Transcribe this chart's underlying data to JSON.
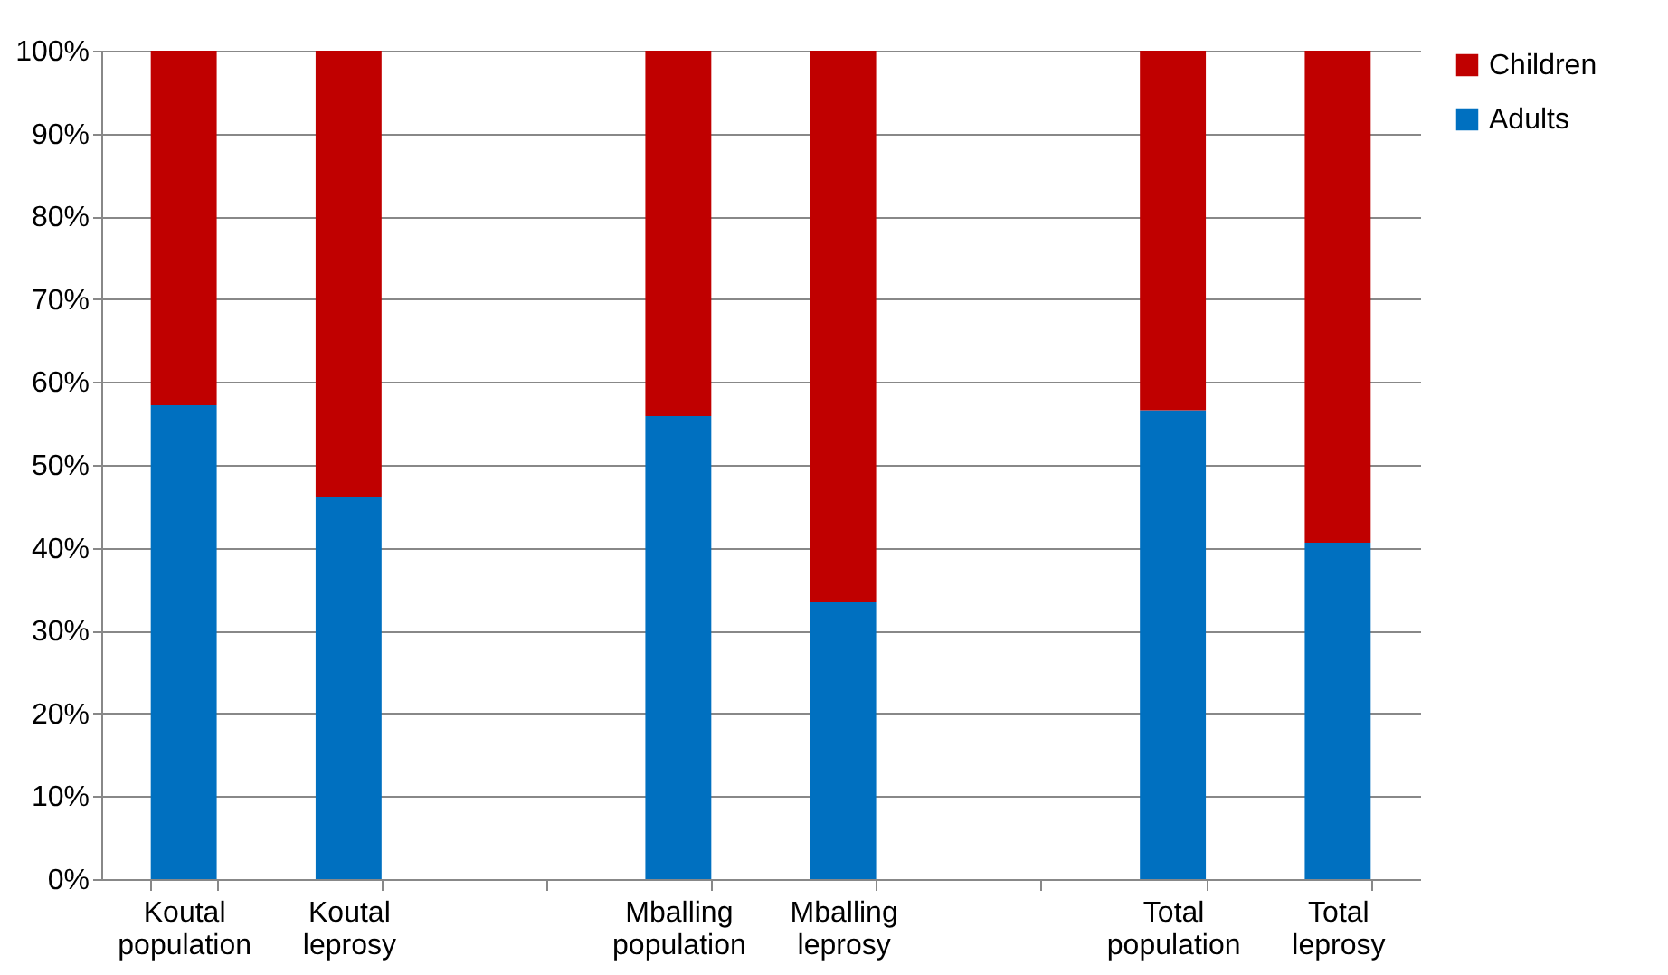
{
  "chart_data": {
    "type": "bar",
    "stacked": true,
    "categories": [
      "Koutal population",
      "Koutal leprosy",
      null,
      "Mballing population",
      "Mballing leprosy",
      null,
      "Total population",
      "Total leprosy"
    ],
    "series": [
      {
        "name": "Adults",
        "color": "#0070c0",
        "values": [
          57.2,
          46.1,
          null,
          55.9,
          33.4,
          null,
          56.6,
          40.6
        ]
      },
      {
        "name": "Children",
        "color": "#c00000",
        "values": [
          42.8,
          53.9,
          null,
          44.1,
          66.6,
          null,
          43.4,
          59.4
        ]
      }
    ],
    "ylim": [
      0,
      100
    ],
    "yticks": [
      {
        "value": 0,
        "label": "0%"
      },
      {
        "value": 10,
        "label": "10%"
      },
      {
        "value": 20,
        "label": "20%"
      },
      {
        "value": 30,
        "label": "30%"
      },
      {
        "value": 40,
        "label": "40%"
      },
      {
        "value": 50,
        "label": "50%"
      },
      {
        "value": 60,
        "label": "60%"
      },
      {
        "value": 70,
        "label": "70%"
      },
      {
        "value": 80,
        "label": "80%"
      },
      {
        "value": 90,
        "label": "90%"
      },
      {
        "value": 100,
        "label": "100%"
      }
    ],
    "grid": "y",
    "legend": "right"
  }
}
